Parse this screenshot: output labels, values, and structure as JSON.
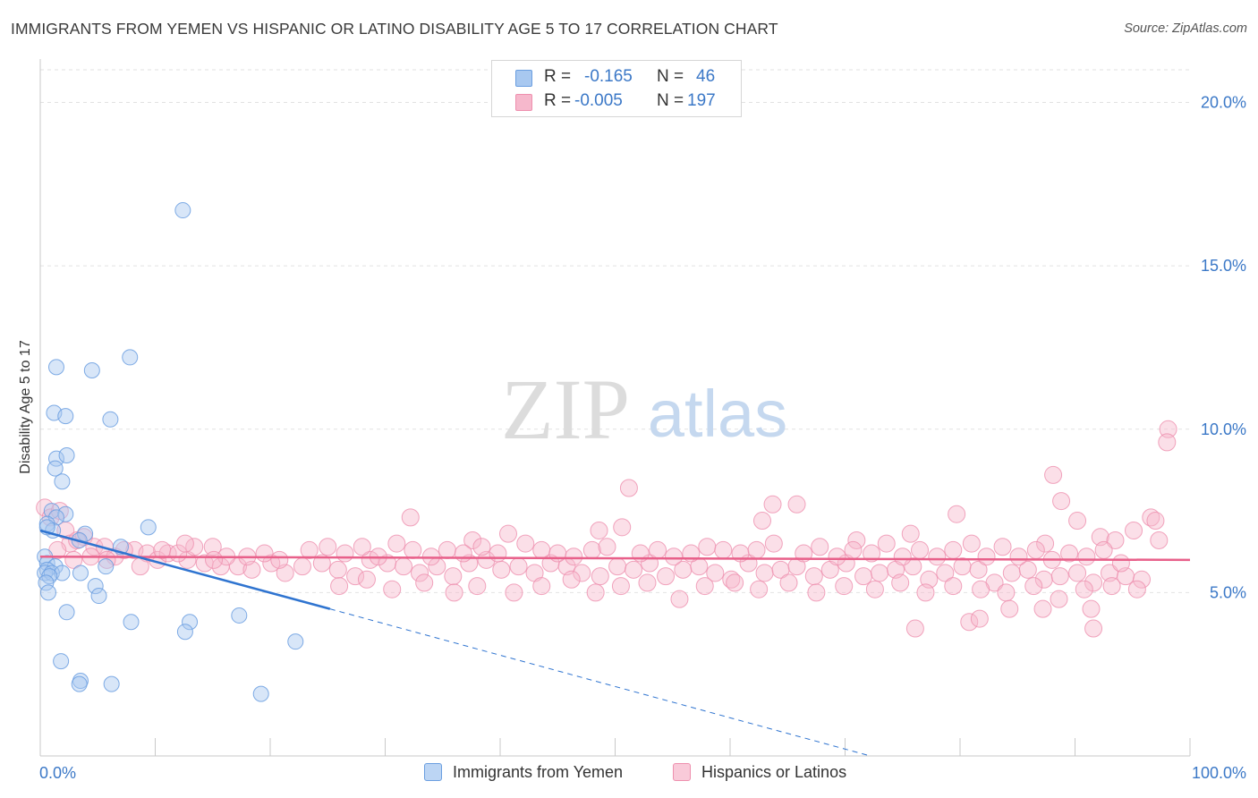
{
  "header": {
    "title": "IMMIGRANTS FROM YEMEN VS HISPANIC OR LATINO DISABILITY AGE 5 TO 17 CORRELATION CHART",
    "source": "Source: ZipAtlas.com"
  },
  "watermark": {
    "zip": "ZIP",
    "atlas": "atlas"
  },
  "legend": {
    "rows": [
      {
        "r_label": "R =",
        "r_value": "-0.165",
        "n_label": "N =",
        "n_value": "46"
      },
      {
        "r_label": "R =",
        "r_value": "-0.005",
        "n_label": "N =",
        "n_value": "197"
      }
    ]
  },
  "colors": {
    "blue_fill": "#a8c8f0",
    "blue_stroke": "#6a9ee0",
    "blue_line": "#2f74d0",
    "pink_fill": "#f6b8cc",
    "pink_stroke": "#ee8fae",
    "pink_line": "#e8608a",
    "axis_text": "#3b78c7",
    "grid": "#e2e2e2"
  },
  "chart_data": {
    "type": "scatter",
    "title": "IMMIGRANTS FROM YEMEN VS HISPANIC OR LATINO DISABILITY AGE 5 TO 17 CORRELATION CHART",
    "xlabel": "",
    "ylabel": "Disability Age 5 to 17",
    "xlim": [
      0,
      100
    ],
    "ylim": [
      0,
      21
    ],
    "x_tick_labels": [
      "0.0%",
      "100.0%"
    ],
    "y_ticks": [
      5,
      10,
      15,
      20
    ],
    "y_tick_labels": [
      "5.0%",
      "10.0%",
      "15.0%",
      "20.0%"
    ],
    "grid": true,
    "legend_position": "top-center",
    "series": [
      {
        "name": "Immigrants from Yemen",
        "color": "#a8c8f0",
        "r": -0.165,
        "n": 46,
        "trend": {
          "x0": 0,
          "y0": 6.9,
          "x1": 25.2,
          "y1": 4.5,
          "dashed_to_x": 72.2,
          "dashed_to_y": 0
        },
        "points": [
          [
            12.4,
            16.7
          ],
          [
            7.8,
            12.2
          ],
          [
            1.4,
            11.9
          ],
          [
            4.5,
            11.8
          ],
          [
            1.2,
            10.5
          ],
          [
            2.2,
            10.4
          ],
          [
            6.1,
            10.3
          ],
          [
            1.4,
            9.1
          ],
          [
            2.3,
            9.2
          ],
          [
            1.3,
            8.8
          ],
          [
            1.9,
            8.4
          ],
          [
            1.0,
            7.5
          ],
          [
            2.2,
            7.4
          ],
          [
            1.4,
            7.3
          ],
          [
            0.6,
            7.1
          ],
          [
            1.1,
            6.9
          ],
          [
            3.9,
            6.8
          ],
          [
            9.4,
            7.0
          ],
          [
            3.4,
            6.6
          ],
          [
            7.0,
            6.4
          ],
          [
            0.4,
            6.1
          ],
          [
            0.6,
            5.9
          ],
          [
            1.3,
            5.8
          ],
          [
            0.6,
            5.7
          ],
          [
            0.4,
            5.6
          ],
          [
            1.0,
            5.6
          ],
          [
            1.9,
            5.6
          ],
          [
            3.5,
            5.6
          ],
          [
            0.8,
            5.5
          ],
          [
            5.7,
            5.8
          ],
          [
            0.5,
            5.3
          ],
          [
            4.8,
            5.2
          ],
          [
            0.7,
            5.0
          ],
          [
            5.1,
            4.9
          ],
          [
            2.3,
            4.4
          ],
          [
            7.9,
            4.1
          ],
          [
            13.0,
            4.1
          ],
          [
            17.3,
            4.3
          ],
          [
            12.6,
            3.8
          ],
          [
            22.2,
            3.5
          ],
          [
            1.8,
            2.9
          ],
          [
            3.5,
            2.3
          ],
          [
            3.4,
            2.2
          ],
          [
            6.2,
            2.2
          ],
          [
            19.2,
            1.9
          ],
          [
            0.6,
            7.0
          ]
        ]
      },
      {
        "name": "Hispanics or Latinos",
        "color": "#f6b8cc",
        "r": -0.005,
        "n": 197,
        "trend": {
          "x0": 0,
          "y0": 6.1,
          "x1": 100,
          "y1": 6.0
        },
        "points": [
          [
            98.1,
            10.0
          ],
          [
            98.0,
            9.6
          ],
          [
            88.1,
            8.6
          ],
          [
            51.2,
            8.2
          ],
          [
            88.8,
            7.8
          ],
          [
            65.8,
            7.7
          ],
          [
            63.7,
            7.7
          ],
          [
            79.7,
            7.4
          ],
          [
            90.2,
            7.2
          ],
          [
            96.6,
            7.3
          ],
          [
            97.0,
            7.2
          ],
          [
            95.1,
            6.9
          ],
          [
            62.8,
            7.2
          ],
          [
            75.7,
            6.8
          ],
          [
            48.6,
            6.9
          ],
          [
            50.6,
            7.0
          ],
          [
            40.7,
            6.8
          ],
          [
            37.6,
            6.6
          ],
          [
            71.0,
            6.6
          ],
          [
            92.2,
            6.7
          ],
          [
            93.5,
            6.6
          ],
          [
            81.0,
            6.5
          ],
          [
            87.4,
            6.5
          ],
          [
            0.4,
            7.6
          ],
          [
            0.9,
            7.3
          ],
          [
            1.7,
            7.5
          ],
          [
            2.2,
            6.9
          ],
          [
            3.8,
            6.7
          ],
          [
            2.6,
            6.5
          ],
          [
            4.7,
            6.4
          ],
          [
            3.2,
            6.6
          ],
          [
            5.6,
            6.4
          ],
          [
            6.5,
            6.1
          ],
          [
            8.2,
            6.3
          ],
          [
            9.3,
            6.2
          ],
          [
            10.2,
            6.0
          ],
          [
            11.1,
            6.2
          ],
          [
            12.8,
            6.0
          ],
          [
            14.3,
            5.9
          ],
          [
            15.7,
            5.8
          ],
          [
            17.2,
            5.8
          ],
          [
            18.4,
            5.7
          ],
          [
            20.1,
            5.9
          ],
          [
            21.3,
            5.6
          ],
          [
            22.8,
            5.8
          ],
          [
            24.5,
            5.9
          ],
          [
            25.9,
            5.7
          ],
          [
            27.4,
            5.5
          ],
          [
            28.7,
            6.0
          ],
          [
            30.2,
            5.9
          ],
          [
            31.6,
            5.8
          ],
          [
            33.0,
            5.6
          ],
          [
            34.5,
            5.8
          ],
          [
            35.9,
            5.5
          ],
          [
            37.3,
            5.9
          ],
          [
            38.8,
            6.0
          ],
          [
            40.1,
            5.7
          ],
          [
            41.6,
            5.8
          ],
          [
            43.0,
            5.6
          ],
          [
            44.4,
            5.9
          ],
          [
            45.8,
            5.8
          ],
          [
            47.1,
            5.6
          ],
          [
            48.7,
            5.5
          ],
          [
            50.2,
            5.8
          ],
          [
            51.6,
            5.7
          ],
          [
            53.0,
            5.9
          ],
          [
            54.4,
            5.5
          ],
          [
            55.9,
            5.7
          ],
          [
            57.3,
            5.8
          ],
          [
            58.7,
            5.6
          ],
          [
            60.1,
            5.4
          ],
          [
            61.6,
            5.9
          ],
          [
            63.0,
            5.6
          ],
          [
            64.4,
            5.7
          ],
          [
            65.8,
            5.8
          ],
          [
            67.3,
            5.5
          ],
          [
            68.7,
            5.7
          ],
          [
            70.1,
            5.9
          ],
          [
            71.6,
            5.5
          ],
          [
            73.0,
            5.6
          ],
          [
            74.4,
            5.7
          ],
          [
            75.9,
            5.8
          ],
          [
            77.3,
            5.4
          ],
          [
            78.7,
            5.6
          ],
          [
            80.2,
            5.8
          ],
          [
            81.6,
            5.7
          ],
          [
            83.0,
            5.3
          ],
          [
            84.5,
            5.6
          ],
          [
            85.9,
            5.7
          ],
          [
            87.3,
            5.4
          ],
          [
            88.7,
            5.5
          ],
          [
            90.2,
            5.6
          ],
          [
            91.6,
            5.3
          ],
          [
            93.0,
            5.6
          ],
          [
            94.4,
            5.5
          ],
          [
            95.8,
            5.4
          ],
          [
            1.5,
            6.3
          ],
          [
            2.9,
            6.0
          ],
          [
            4.4,
            6.1
          ],
          [
            5.8,
            6.0
          ],
          [
            7.3,
            6.3
          ],
          [
            8.7,
            5.8
          ],
          [
            10.6,
            6.3
          ],
          [
            12.0,
            6.2
          ],
          [
            13.4,
            6.4
          ],
          [
            15.0,
            6.4
          ],
          [
            16.2,
            6.1
          ],
          [
            18.0,
            6.1
          ],
          [
            19.5,
            6.2
          ],
          [
            20.8,
            6.0
          ],
          [
            23.4,
            6.3
          ],
          [
            25.0,
            6.4
          ],
          [
            26.5,
            6.2
          ],
          [
            28.0,
            6.4
          ],
          [
            29.4,
            6.1
          ],
          [
            31.0,
            6.5
          ],
          [
            32.4,
            6.3
          ],
          [
            34.0,
            6.1
          ],
          [
            35.4,
            6.3
          ],
          [
            36.8,
            6.2
          ],
          [
            38.4,
            6.4
          ],
          [
            39.8,
            6.2
          ],
          [
            42.2,
            6.5
          ],
          [
            43.6,
            6.3
          ],
          [
            45.0,
            6.2
          ],
          [
            46.4,
            6.1
          ],
          [
            48.0,
            6.3
          ],
          [
            49.3,
            6.4
          ],
          [
            52.2,
            6.2
          ],
          [
            53.7,
            6.3
          ],
          [
            55.1,
            6.1
          ],
          [
            56.6,
            6.2
          ],
          [
            58.0,
            6.4
          ],
          [
            59.4,
            6.3
          ],
          [
            60.9,
            6.2
          ],
          [
            62.3,
            6.3
          ],
          [
            63.8,
            6.5
          ],
          [
            66.4,
            6.2
          ],
          [
            67.8,
            6.4
          ],
          [
            69.3,
            6.1
          ],
          [
            70.7,
            6.3
          ],
          [
            72.3,
            6.2
          ],
          [
            73.6,
            6.5
          ],
          [
            75.0,
            6.1
          ],
          [
            76.5,
            6.3
          ],
          [
            78.0,
            6.1
          ],
          [
            79.4,
            6.3
          ],
          [
            82.3,
            6.1
          ],
          [
            83.7,
            6.4
          ],
          [
            85.1,
            6.1
          ],
          [
            86.6,
            6.3
          ],
          [
            88.0,
            6.0
          ],
          [
            89.5,
            6.2
          ],
          [
            91.0,
            6.1
          ],
          [
            92.5,
            6.3
          ],
          [
            94.0,
            5.9
          ],
          [
            26.0,
            5.2
          ],
          [
            28.4,
            5.4
          ],
          [
            30.6,
            5.1
          ],
          [
            33.4,
            5.3
          ],
          [
            36.0,
            5.0
          ],
          [
            38.0,
            5.2
          ],
          [
            41.2,
            5.0
          ],
          [
            43.6,
            5.2
          ],
          [
            46.2,
            5.4
          ],
          [
            48.3,
            5.0
          ],
          [
            50.5,
            5.2
          ],
          [
            52.8,
            5.3
          ],
          [
            55.6,
            4.8
          ],
          [
            57.8,
            5.2
          ],
          [
            60.4,
            5.3
          ],
          [
            62.5,
            5.1
          ],
          [
            65.1,
            5.3
          ],
          [
            67.5,
            5.0
          ],
          [
            69.9,
            5.2
          ],
          [
            72.6,
            5.1
          ],
          [
            74.8,
            5.3
          ],
          [
            77.0,
            5.0
          ],
          [
            79.4,
            5.2
          ],
          [
            81.8,
            5.1
          ],
          [
            84.0,
            5.0
          ],
          [
            86.4,
            5.2
          ],
          [
            88.6,
            4.8
          ],
          [
            90.8,
            5.1
          ],
          [
            93.2,
            5.2
          ],
          [
            95.4,
            5.1
          ],
          [
            76.1,
            3.9
          ],
          [
            80.8,
            4.1
          ],
          [
            81.7,
            4.2
          ],
          [
            84.3,
            4.5
          ],
          [
            87.2,
            4.5
          ],
          [
            91.4,
            4.5
          ],
          [
            91.6,
            3.9
          ],
          [
            32.2,
            7.3
          ],
          [
            12.6,
            6.5
          ],
          [
            97.3,
            6.6
          ],
          [
            15.1,
            6.0
          ]
        ]
      }
    ]
  },
  "bottom_legend": [
    {
      "label": "Immigrants from Yemen"
    },
    {
      "label": "Hispanics or Latinos"
    }
  ]
}
